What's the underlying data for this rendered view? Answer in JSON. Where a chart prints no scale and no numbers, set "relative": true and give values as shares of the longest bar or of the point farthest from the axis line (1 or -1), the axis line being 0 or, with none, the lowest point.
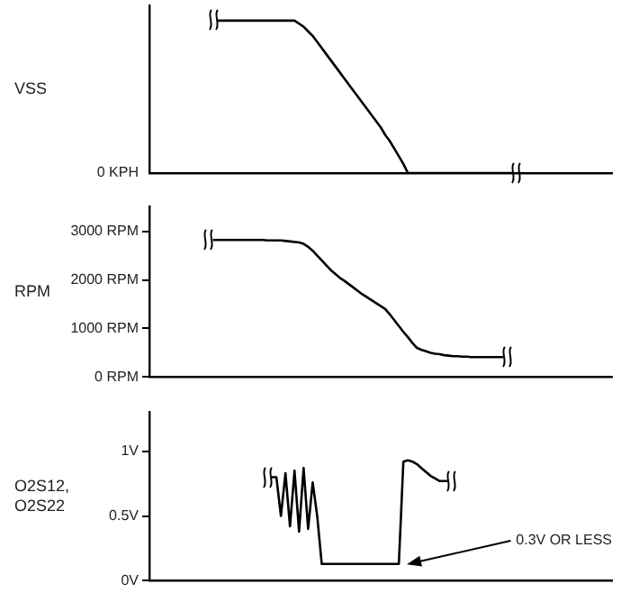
{
  "chart_data": [
    {
      "type": "line",
      "ylabel": "VSS",
      "relative": true,
      "tick_labels": false,
      "grid": false,
      "legend": false,
      "marker": "none",
      "annotations": [
        "0 KPH"
      ],
      "categories": [
        null,
        null,
        null,
        null,
        null,
        null,
        null,
        null,
        null,
        null,
        null,
        null,
        null,
        null,
        null,
        null,
        null,
        null,
        null,
        null,
        null,
        null,
        null,
        null,
        null,
        null,
        null,
        null,
        null,
        null,
        null,
        null,
        null,
        null,
        null,
        null,
        null,
        null,
        null,
        null,
        null,
        null,
        null,
        null,
        null,
        null,
        null,
        null,
        null,
        null,
        null,
        null,
        null,
        null,
        null,
        null,
        null,
        null,
        null,
        null,
        null,
        null,
        null,
        null,
        null,
        null,
        null,
        null,
        null,
        null,
        null,
        null,
        null,
        null,
        null,
        null,
        null,
        null,
        null,
        null,
        null,
        null,
        null,
        null,
        null,
        null,
        null,
        null,
        null,
        null,
        null,
        null,
        null,
        null,
        null,
        null,
        null,
        null,
        null,
        null,
        null,
        null,
        null
      ],
      "series": [
        {
          "color": "#000000",
          "values": [
            null,
            null,
            null,
            null,
            null,
            null,
            null,
            null,
            null,
            null,
            null,
            null,
            null,
            null,
            null,
            1,
            1,
            1,
            1,
            1,
            1,
            1,
            1,
            1,
            1,
            1,
            1,
            1,
            1,
            1,
            1,
            1,
            1,
            0.98,
            0.96,
            0.93,
            0.9,
            0.86,
            0.82,
            0.78,
            0.74,
            0.7,
            0.66,
            0.62,
            0.58,
            0.54,
            0.5,
            0.46,
            0.42,
            0.38,
            0.34,
            0.3,
            0.25,
            0.21,
            0.16,
            0.11,
            0.06,
            0,
            0,
            0,
            0,
            0,
            0,
            0,
            0,
            0,
            0,
            0,
            0,
            0,
            0,
            0,
            0,
            0,
            0,
            0,
            0,
            0,
            0,
            0,
            0,
            null,
            null,
            null,
            null,
            null,
            null,
            null,
            null,
            null,
            null,
            null,
            null,
            null,
            null,
            null,
            null,
            null,
            null,
            null,
            null,
            null,
            null
          ]
        }
      ]
    },
    {
      "type": "line",
      "ylabel": "RPM",
      "tick_labels": "y",
      "grid": false,
      "legend": false,
      "marker": "none",
      "ylim": [
        0,
        3500
      ],
      "yticks": [
        {
          "value": 0,
          "label": "0 RPM"
        },
        {
          "value": 1000,
          "label": "1000 RPM"
        },
        {
          "value": 2000,
          "label": "2000 RPM"
        },
        {
          "value": 3000,
          "label": "3000 RPM"
        }
      ],
      "categories": [
        null,
        null,
        null,
        null,
        null,
        null,
        null,
        null,
        null,
        null,
        null,
        null,
        null,
        null,
        null,
        null,
        null,
        null,
        null,
        null,
        null,
        null,
        null,
        null,
        null,
        null,
        null,
        null,
        null,
        null,
        null,
        null,
        null,
        null,
        null,
        null,
        null,
        null,
        null,
        null,
        null,
        null,
        null,
        null,
        null,
        null,
        null,
        null,
        null,
        null,
        null,
        null,
        null,
        null,
        null,
        null,
        null,
        null,
        null,
        null,
        null,
        null,
        null,
        null,
        null,
        null,
        null,
        null,
        null,
        null,
        null,
        null,
        null,
        null,
        null,
        null,
        null,
        null,
        null,
        null,
        null,
        null,
        null,
        null,
        null,
        null,
        null,
        null,
        null,
        null,
        null,
        null,
        null,
        null,
        null,
        null,
        null,
        null,
        null,
        null,
        null,
        null,
        null
      ],
      "series": [
        {
          "color": "#000000",
          "values": [
            null,
            null,
            null,
            null,
            null,
            null,
            null,
            null,
            null,
            null,
            null,
            null,
            null,
            null,
            2820,
            2820,
            2820,
            2820,
            2820,
            2820,
            2820,
            2820,
            2820,
            2820,
            2820,
            2820,
            2810,
            2810,
            2810,
            2810,
            2800,
            2790,
            2780,
            2770,
            2740,
            2680,
            2600,
            2500,
            2400,
            2300,
            2200,
            2120,
            2040,
            1980,
            1910,
            1840,
            1770,
            1700,
            1640,
            1580,
            1520,
            1460,
            1400,
            1290,
            1170,
            1050,
            930,
            820,
            700,
            600,
            560,
            530,
            500,
            480,
            470,
            450,
            440,
            430,
            430,
            420,
            420,
            410,
            410,
            410,
            410,
            410,
            410,
            410,
            410,
            null,
            null,
            null,
            null,
            null,
            null,
            null,
            null,
            null,
            null,
            null,
            null,
            null,
            null,
            null,
            null,
            null,
            null,
            null,
            null,
            null,
            null,
            null,
            null
          ]
        }
      ]
    },
    {
      "type": "line",
      "ylabel": "O2S12, O2S22",
      "tick_labels": "y",
      "grid": false,
      "legend": false,
      "marker": "none",
      "ylim": [
        0,
        1.3
      ],
      "yticks": [
        {
          "value": 0,
          "label": "0V"
        },
        {
          "value": 0.5,
          "label": "0.5V"
        },
        {
          "value": 1,
          "label": "1V"
        }
      ],
      "annotations": [
        "0.3V OR LESS"
      ],
      "categories": [
        null,
        null,
        null,
        null,
        null,
        null,
        null,
        null,
        null,
        null,
        null,
        null,
        null,
        null,
        null,
        null,
        null,
        null,
        null,
        null,
        null,
        null,
        null,
        null,
        null,
        null,
        null,
        null,
        null,
        null,
        null,
        null,
        null,
        null,
        null,
        null,
        null,
        null,
        null,
        null,
        null,
        null,
        null,
        null,
        null,
        null,
        null,
        null,
        null,
        null,
        null,
        null,
        null,
        null,
        null,
        null,
        null,
        null,
        null,
        null,
        null,
        null,
        null,
        null,
        null,
        null,
        null,
        null,
        null,
        null,
        null,
        null,
        null,
        null,
        null,
        null,
        null,
        null,
        null,
        null,
        null,
        null,
        null,
        null,
        null,
        null,
        null,
        null,
        null,
        null,
        null,
        null,
        null,
        null,
        null,
        null,
        null,
        null,
        null,
        null,
        null,
        null,
        null
      ],
      "series": [
        {
          "color": "#000000",
          "values": [
            null,
            null,
            null,
            null,
            null,
            null,
            null,
            null,
            null,
            null,
            null,
            null,
            null,
            null,
            null,
            null,
            null,
            null,
            null,
            null,
            null,
            null,
            null,
            null,
            null,
            null,
            null,
            0.8,
            0.8,
            0.5,
            0.83,
            0.42,
            0.85,
            0.38,
            0.87,
            0.4,
            0.76,
            0.5,
            0.13,
            0.13,
            0.13,
            0.13,
            0.13,
            0.13,
            0.13,
            0.13,
            0.13,
            0.13,
            0.13,
            0.13,
            0.13,
            0.13,
            0.13,
            0.13,
            0.13,
            0.13,
            0.92,
            0.93,
            0.92,
            0.9,
            0.87,
            0.84,
            0.81,
            0.79,
            0.77,
            0.77,
            0.77,
            null,
            null,
            null,
            null,
            null,
            null,
            null,
            null,
            null,
            null,
            null,
            null,
            null,
            null,
            null,
            null,
            null,
            null,
            null,
            null,
            null,
            null,
            null,
            null,
            null,
            null,
            null,
            null,
            null,
            null,
            null,
            null,
            null,
            null,
            null,
            null
          ]
        }
      ]
    }
  ]
}
